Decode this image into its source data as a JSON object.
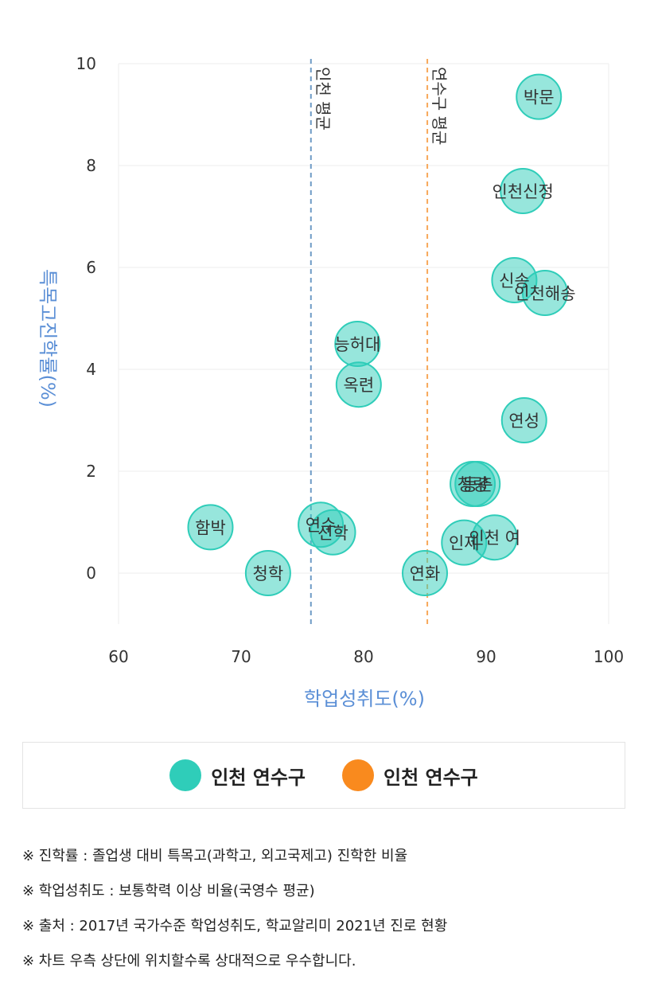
{
  "chart_data": {
    "type": "scatter",
    "xlabel": "학업성취도(%)",
    "ylabel": "특목고진학률(%)",
    "xlim": [
      60,
      100
    ],
    "ylim": [
      -1,
      10
    ],
    "x_ticks": [
      60,
      70,
      80,
      90,
      100
    ],
    "y_ticks": [
      0,
      2,
      4,
      6,
      8,
      10
    ],
    "grid": "horizontal",
    "bubble_color": "#2fcdb9",
    "points": [
      {
        "label": "박문",
        "x": 94.3,
        "y": 9.35
      },
      {
        "label": "인천신정",
        "x": 93.0,
        "y": 7.5
      },
      {
        "label": "신송",
        "x": 92.3,
        "y": 5.75
      },
      {
        "label": "인천해송",
        "x": 94.8,
        "y": 5.5
      },
      {
        "label": "능허대",
        "x": 79.5,
        "y": 4.5
      },
      {
        "label": "옥련",
        "x": 79.6,
        "y": 3.7
      },
      {
        "label": "연성",
        "x": 93.1,
        "y": 3.0
      },
      {
        "label": "청량",
        "x": 88.9,
        "y": 1.75
      },
      {
        "label": "동춘",
        "x": 89.3,
        "y": 1.75
      },
      {
        "label": "함박",
        "x": 67.5,
        "y": 0.9
      },
      {
        "label": "연수",
        "x": 76.5,
        "y": 0.95
      },
      {
        "label": "선학",
        "x": 77.5,
        "y": 0.8
      },
      {
        "label": "인제",
        "x": 88.2,
        "y": 0.6
      },
      {
        "label": "인천 여",
        "x": 90.7,
        "y": 0.7
      },
      {
        "label": "청학",
        "x": 72.2,
        "y": 0.0
      },
      {
        "label": "연화",
        "x": 85.0,
        "y": 0.0
      }
    ],
    "reference_lines": [
      {
        "label": "인천 평균",
        "x": 75.7,
        "color": "#6f9bc6"
      },
      {
        "label": "연수구 평균",
        "x": 85.2,
        "color": "#f7a85a"
      }
    ]
  },
  "legend": [
    {
      "label": "인천 연수구",
      "color": "#2fcdb9"
    },
    {
      "label": "인천 연수구",
      "color": "#f98a1e"
    }
  ],
  "notes": [
    "※ 진학률 : 졸업생 대비 특목고(과학고, 외고국제고) 진학한 비율",
    "※ 학업성취도 : 보통학력 이상 비율(국영수 평균)",
    "※ 출처 : 2017년 국가수준 학업성취도, 학교알리미 2021년 진로 현황",
    "※ 차트 우측 상단에 위치할수록 상대적으로 우수합니다."
  ]
}
